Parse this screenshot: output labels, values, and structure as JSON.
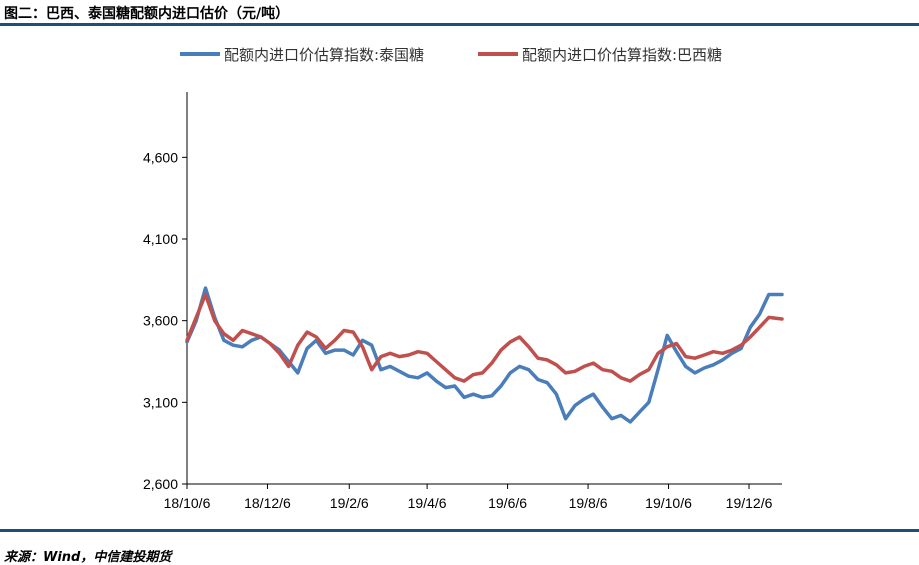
{
  "figure": {
    "title": "图二：巴西、泰国糖配额内进口估价（元/吨）",
    "source": "来源：Wind，中信建投期货"
  },
  "chart_data": {
    "type": "line",
    "title": "",
    "xlabel": "",
    "ylabel": "",
    "ylim": [
      2600,
      5000
    ],
    "yticks": [
      "2,600",
      "3,100",
      "3,600",
      "4,100",
      "4,600"
    ],
    "ytick_values": [
      2600,
      3100,
      3600,
      4100,
      4600
    ],
    "xticks": [
      "18/10/6",
      "18/12/6",
      "19/2/6",
      "19/4/6",
      "19/6/6",
      "19/8/6",
      "19/10/6",
      "19/12/6"
    ],
    "x_range": [
      "2018-10-06",
      "2019-12-31"
    ],
    "grid": false,
    "legend": "top",
    "series": [
      {
        "name": "配额内进口价估算指数:泰国糖",
        "color": "#4a7ebb",
        "x": [
          "2018-10-06",
          "2018-10-13",
          "2018-10-20",
          "2018-10-27",
          "2018-11-03",
          "2018-11-10",
          "2018-11-17",
          "2018-11-24",
          "2018-12-01",
          "2018-12-08",
          "2018-12-15",
          "2018-12-22",
          "2018-12-29",
          "2019-01-05",
          "2019-01-12",
          "2019-01-19",
          "2019-01-26",
          "2019-02-02",
          "2019-02-09",
          "2019-02-16",
          "2019-02-23",
          "2019-03-02",
          "2019-03-09",
          "2019-03-16",
          "2019-03-23",
          "2019-03-30",
          "2019-04-06",
          "2019-04-13",
          "2019-04-20",
          "2019-04-27",
          "2019-05-04",
          "2019-05-11",
          "2019-05-18",
          "2019-05-25",
          "2019-06-01",
          "2019-06-08",
          "2019-06-15",
          "2019-06-22",
          "2019-06-29",
          "2019-07-06",
          "2019-07-13",
          "2019-07-20",
          "2019-07-27",
          "2019-08-03",
          "2019-08-10",
          "2019-08-17",
          "2019-08-24",
          "2019-08-31",
          "2019-09-07",
          "2019-09-14",
          "2019-09-21",
          "2019-09-28",
          "2019-10-05",
          "2019-10-12",
          "2019-10-19",
          "2019-10-26",
          "2019-11-02",
          "2019-11-09",
          "2019-11-16",
          "2019-11-23",
          "2019-11-30",
          "2019-12-07",
          "2019-12-14",
          "2019-12-21",
          "2019-12-31"
        ],
        "values": [
          3470,
          3600,
          3800,
          3620,
          3480,
          3450,
          3440,
          3480,
          3500,
          3460,
          3420,
          3350,
          3280,
          3430,
          3480,
          3400,
          3420,
          3420,
          3390,
          3480,
          3450,
          3300,
          3320,
          3290,
          3260,
          3250,
          3280,
          3230,
          3190,
          3200,
          3130,
          3150,
          3130,
          3140,
          3200,
          3280,
          3320,
          3300,
          3240,
          3220,
          3150,
          3000,
          3080,
          3120,
          3150,
          3070,
          3000,
          3020,
          2980,
          3040,
          3100,
          3300,
          3510,
          3410,
          3320,
          3280,
          3310,
          3330,
          3360,
          3400,
          3430,
          3560,
          3640,
          3760,
          3760
        ]
      },
      {
        "name": "配额内进口价估算指数:巴西糖",
        "color": "#c0504d",
        "x": [
          "2018-10-06",
          "2018-10-13",
          "2018-10-20",
          "2018-10-27",
          "2018-11-03",
          "2018-11-10",
          "2018-11-17",
          "2018-11-24",
          "2018-12-01",
          "2018-12-08",
          "2018-12-15",
          "2018-12-22",
          "2018-12-29",
          "2019-01-05",
          "2019-01-12",
          "2019-01-19",
          "2019-01-26",
          "2019-02-02",
          "2019-02-09",
          "2019-02-16",
          "2019-02-23",
          "2019-03-02",
          "2019-03-09",
          "2019-03-16",
          "2019-03-23",
          "2019-03-30",
          "2019-04-06",
          "2019-04-13",
          "2019-04-20",
          "2019-04-27",
          "2019-05-04",
          "2019-05-11",
          "2019-05-18",
          "2019-05-25",
          "2019-06-01",
          "2019-06-08",
          "2019-06-15",
          "2019-06-22",
          "2019-06-29",
          "2019-07-06",
          "2019-07-13",
          "2019-07-20",
          "2019-07-27",
          "2019-08-03",
          "2019-08-10",
          "2019-08-17",
          "2019-08-24",
          "2019-08-31",
          "2019-09-07",
          "2019-09-14",
          "2019-09-21",
          "2019-09-28",
          "2019-10-05",
          "2019-10-12",
          "2019-10-19",
          "2019-10-26",
          "2019-11-02",
          "2019-11-09",
          "2019-11-16",
          "2019-11-23",
          "2019-11-30",
          "2019-12-07",
          "2019-12-14",
          "2019-12-21",
          "2019-12-31"
        ],
        "values": [
          3480,
          3620,
          3760,
          3600,
          3520,
          3480,
          3540,
          3520,
          3500,
          3460,
          3400,
          3320,
          3450,
          3530,
          3500,
          3430,
          3480,
          3540,
          3530,
          3440,
          3300,
          3380,
          3400,
          3380,
          3390,
          3410,
          3400,
          3350,
          3300,
          3250,
          3230,
          3270,
          3280,
          3340,
          3420,
          3470,
          3500,
          3440,
          3370,
          3360,
          3330,
          3280,
          3290,
          3320,
          3340,
          3300,
          3290,
          3250,
          3230,
          3270,
          3300,
          3400,
          3440,
          3460,
          3380,
          3370,
          3390,
          3410,
          3400,
          3420,
          3450,
          3500,
          3560,
          3620,
          3610
        ]
      }
    ]
  }
}
